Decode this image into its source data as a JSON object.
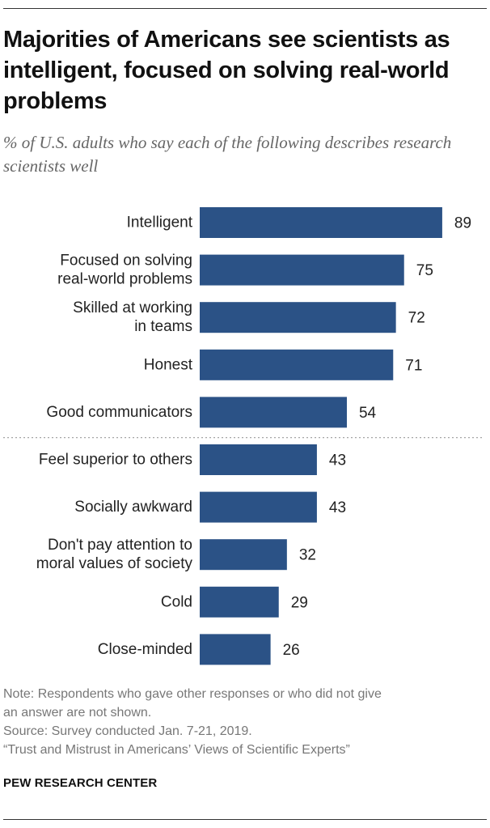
{
  "title": "Majorities of Americans see scientists as intelligent, focused on solving real-world problems",
  "subtitle": "% of U.S. adults who say each of the following describes research scientists well",
  "chart_data": {
    "type": "bar",
    "orientation": "horizontal",
    "title": "Majorities of Americans see scientists as intelligent, focused on solving real-world problems",
    "subtitle": "% of U.S. adults who say each of the following describes research scientists well",
    "categories": [
      [
        "Intelligent"
      ],
      [
        "Focused on solving",
        "real-world problems"
      ],
      [
        "Skilled at working",
        "in teams"
      ],
      [
        "Honest"
      ],
      [
        "Good communicators"
      ],
      [
        "Feel superior to others"
      ],
      [
        "Socially awkward"
      ],
      [
        "Don't pay attention to",
        "moral values of society"
      ],
      [
        "Cold"
      ],
      [
        "Close-minded"
      ]
    ],
    "values": [
      89,
      75,
      72,
      71,
      54,
      43,
      43,
      32,
      29,
      26
    ],
    "xlim": [
      0,
      100
    ],
    "divider_after_index": 4,
    "bar_color": "#2b5286",
    "grid": false
  },
  "footer": {
    "note": "Note: Respondents who gave other responses or who did not give",
    "note2": "an answer are not shown.",
    "source": "Source: Survey conducted Jan. 7-21, 2019.",
    "report": "“Trust and Mistrust in Americans’ Views of Scientific Experts”"
  },
  "brand": "PEW RESEARCH CENTER"
}
